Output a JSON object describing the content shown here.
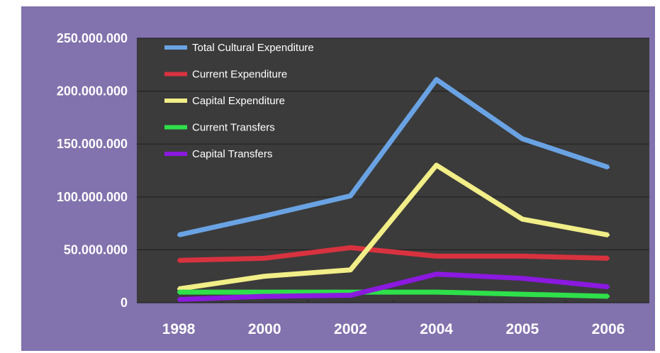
{
  "chart_data": {
    "type": "line",
    "categories": [
      "1998",
      "2000",
      "2002",
      "2004",
      "2005",
      "2006"
    ],
    "y_tick_labels": [
      "0",
      "50.000.000",
      "100.000.000",
      "150.000.000",
      "200.000.000",
      "250.000.000"
    ],
    "y_ticks": [
      0,
      50000000,
      100000000,
      150000000,
      200000000,
      250000000
    ],
    "ylim": [
      0,
      250000000
    ],
    "grid": true,
    "legend_position": "top-left",
    "series": [
      {
        "name": "Total Cultural Expenditure",
        "color": "#6aa3e4",
        "values": [
          64000000,
          82000000,
          101000000,
          211000000,
          155000000,
          128000000
        ]
      },
      {
        "name": "Current Expenditure",
        "color": "#d8323f",
        "values": [
          40000000,
          42000000,
          52000000,
          44000000,
          44000000,
          42000000
        ]
      },
      {
        "name": "Capital Expenditure",
        "color": "#f2ee88",
        "values": [
          13000000,
          25000000,
          31000000,
          130000000,
          79000000,
          64000000
        ]
      },
      {
        "name": "Current Transfers",
        "color": "#2ee04a",
        "values": [
          10000000,
          10000000,
          10000000,
          10000000,
          8000000,
          6000000
        ]
      },
      {
        "name": "Capital Transfers",
        "color": "#8b19df",
        "values": [
          3000000,
          6000000,
          7000000,
          27000000,
          23000000,
          15000000
        ]
      }
    ]
  }
}
